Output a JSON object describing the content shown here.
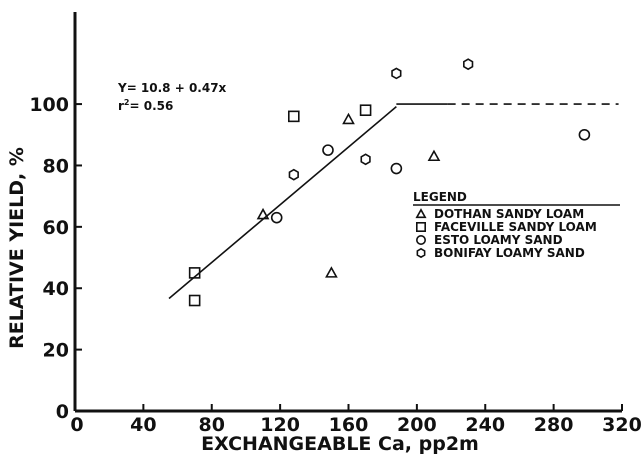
{
  "chart_data": {
    "type": "scatter",
    "xlabel": "EXCHANGEABLE Ca, pp2m",
    "ylabel": "RELATIVE YIELD, %",
    "xlim": [
      0,
      320
    ],
    "ylim": [
      0,
      120
    ],
    "xticks": [
      "0",
      "40",
      "80",
      "120",
      "160",
      "200",
      "240",
      "280",
      "320"
    ],
    "yticks": [
      "0",
      "20",
      "40",
      "60",
      "80",
      "100"
    ],
    "annotation": {
      "equation": "Y= 10.8 + 0.47x",
      "r2_prefix": "r",
      "r2_sup": "2",
      "r2_value": "= 0.56"
    },
    "legend": {
      "title": "LEGEND",
      "placement": "right-center"
    },
    "regression": {
      "slope_line": [
        [
          55,
          36.65
        ],
        [
          188,
          99.16
        ]
      ],
      "plateau_y": 100,
      "plateau_x_end": 318
    },
    "series": [
      {
        "name": "DOTHAN SANDY LOAM",
        "marker": "triangle",
        "points": [
          [
            110,
            64
          ],
          [
            150,
            45
          ],
          [
            160,
            95
          ],
          [
            210,
            83
          ]
        ]
      },
      {
        "name": "FACEVILLE SANDY LOAM",
        "marker": "square",
        "points": [
          [
            70,
            45
          ],
          [
            70,
            36
          ],
          [
            128,
            96
          ],
          [
            170,
            98
          ]
        ]
      },
      {
        "name": "ESTO LOAMY SAND",
        "marker": "circle",
        "points": [
          [
            118,
            63
          ],
          [
            148,
            85
          ],
          [
            188,
            79
          ],
          [
            298,
            90
          ]
        ]
      },
      {
        "name": "BONIFAY LOAMY SAND",
        "marker": "hexagon",
        "points": [
          [
            128,
            77
          ],
          [
            170,
            82
          ],
          [
            188,
            110
          ],
          [
            230,
            113
          ]
        ]
      }
    ]
  }
}
